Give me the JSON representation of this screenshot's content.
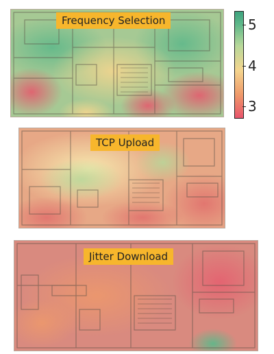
{
  "panels": [
    {
      "title": "Frequency Selection"
    },
    {
      "title": "TCP Upload"
    },
    {
      "title": "Jitter Download"
    }
  ],
  "colorbar": {
    "min": 2.8,
    "max": 5.4,
    "ticks": [
      "5",
      "4",
      "3"
    ],
    "tick_values": [
      5,
      4,
      3
    ],
    "colors": [
      "#e8546b",
      "#ef9a6a",
      "#f4d58e",
      "#b7d89a",
      "#5fb88a",
      "#3ea37e"
    ]
  }
}
